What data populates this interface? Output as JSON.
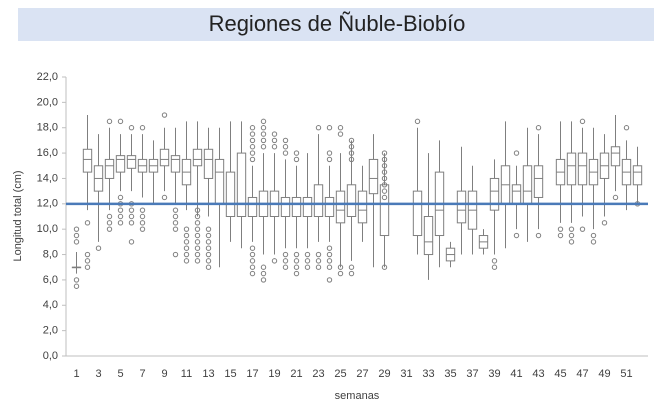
{
  "chart_data": {
    "type": "boxplot",
    "title": "Regiones de Ñuble-Biobío",
    "xlabel": "semanas",
    "ylabel": "Longitud total (cm)",
    "categories": [
      "1",
      null,
      "3",
      null,
      "5",
      null,
      "7",
      null,
      "9",
      null,
      "11",
      null,
      "13",
      null,
      "15",
      null,
      "17",
      null,
      "19",
      null,
      "21",
      null,
      "23",
      null,
      "25",
      null,
      "27",
      null,
      "29",
      null,
      "31",
      null,
      "33",
      null,
      "35",
      null,
      "37",
      null,
      "39",
      null,
      "41",
      null,
      "43",
      null,
      "45",
      null,
      "47",
      null,
      "49",
      null,
      "51",
      null
    ],
    "min": [
      6.5,
      11.5,
      9,
      11.5,
      13,
      13,
      12.5,
      12,
      13,
      12,
      11.5,
      11,
      11,
      7,
      9,
      8.5,
      9,
      8,
      8,
      8.5,
      8.5,
      8.5,
      9,
      9,
      7,
      7.5,
      9,
      7,
      7,
      null,
      null,
      8,
      6,
      7,
      7,
      8,
      8,
      8,
      8,
      8.5,
      10,
      9,
      10,
      null,
      10.5,
      10.5,
      11,
      10,
      11,
      13,
      11.5,
      12
    ],
    "q1": [
      7,
      14.5,
      13,
      14,
      14.5,
      14.8,
      14.5,
      14.5,
      15,
      14.5,
      13.5,
      15,
      14,
      12,
      11,
      11,
      11,
      11,
      11,
      11,
      11,
      11,
      11,
      11,
      10.5,
      11,
      10.5,
      12.8,
      9.5,
      null,
      null,
      9.5,
      8,
      9.5,
      7.5,
      10.5,
      10,
      8.5,
      11.5,
      12,
      12,
      12,
      12.5,
      null,
      13.5,
      13.5,
      13.5,
      13.5,
      14,
      15,
      13.5,
      13.5
    ],
    "median": [
      7,
      15.5,
      14,
      15,
      15.5,
      15.5,
      15,
      15,
      15.5,
      15.5,
      14.5,
      15.5,
      15.5,
      14.5,
      12,
      12,
      12,
      12,
      12,
      12,
      12,
      12,
      12,
      12,
      11.5,
      12,
      11.5,
      14,
      12,
      null,
      null,
      12,
      9,
      11.5,
      8,
      11.5,
      11.5,
      9,
      13,
      13.5,
      13,
      13,
      14,
      null,
      14.5,
      15,
      15,
      14.5,
      15,
      16,
      14.5,
      14.5
    ],
    "q3": [
      7,
      16.3,
      15,
      15.5,
      15.8,
      15.8,
      15.5,
      15.5,
      16.3,
      15.8,
      15.5,
      16.3,
      16.3,
      15.5,
      14.5,
      16,
      12.5,
      13,
      13,
      12.5,
      12.5,
      12.5,
      13.5,
      12.5,
      13,
      13.5,
      13,
      15.5,
      13.5,
      null,
      null,
      13,
      11,
      14.5,
      8.5,
      13,
      13,
      9.5,
      14,
      15,
      13.5,
      15,
      15,
      null,
      15.5,
      16,
      16,
      15.5,
      16,
      16.5,
      15.5,
      15
    ],
    "max": [
      8.2,
      19,
      17.5,
      18,
      17.5,
      17.5,
      17.5,
      17,
      18,
      18,
      18.5,
      18.5,
      18,
      18,
      18.5,
      18.5,
      15,
      16,
      16,
      15.5,
      15,
      16,
      17.5,
      15,
      16,
      17,
      15,
      17.5,
      16,
      null,
      null,
      18,
      16,
      17,
      9,
      16.5,
      15,
      10,
      15.5,
      18.5,
      15,
      18,
      17.5,
      null,
      18.5,
      18.5,
      18,
      18,
      17.5,
      19,
      17,
      16.5
    ],
    "outliers": [
      [
        5.5,
        6,
        9,
        9.5,
        10
      ],
      [
        7,
        7.5,
        8,
        10.5
      ],
      [
        8.5
      ],
      [
        10,
        10.5,
        11,
        18.5
      ],
      [
        10.5,
        11,
        11.5,
        12,
        12.5,
        18.5
      ],
      [
        9,
        10.5,
        11,
        11.5,
        12,
        18
      ],
      [
        10,
        10.5,
        11,
        11.5,
        18
      ],
      [],
      [
        12.5,
        19
      ],
      [
        8,
        10,
        10.5,
        11,
        11.5
      ],
      [
        7.5,
        8,
        8.5,
        9,
        9.5,
        10
      ],
      [
        7.5,
        8,
        8.5,
        9,
        9.5,
        10,
        10.5,
        11,
        11.5
      ],
      [
        7,
        7.5,
        8,
        8.5,
        9,
        9.5,
        10
      ],
      [],
      [],
      [],
      [
        6.5,
        7,
        7.5,
        8,
        8.5,
        15.5,
        16,
        16.5,
        17,
        17.5,
        18
      ],
      [
        6,
        6.5,
        7,
        16.5,
        17,
        17.5,
        18,
        18.5
      ],
      [
        7.5,
        16.5,
        17,
        17.5
      ],
      [
        7,
        7.5,
        8,
        16,
        16.5,
        17
      ],
      [
        6.5,
        7,
        7.5,
        8,
        15.5,
        16
      ],
      [
        7,
        7.5,
        8
      ],
      [
        7,
        7.5,
        8,
        18
      ],
      [
        6,
        7,
        7.5,
        8,
        8.5,
        15.5,
        16,
        18
      ],
      [
        6.5,
        7,
        17.5,
        18
      ],
      [
        6.5,
        7,
        15.5,
        16,
        16.5,
        17
      ],
      [],
      [],
      [
        7,
        12.5,
        13,
        13.5,
        14,
        14.5,
        15,
        15.5,
        16
      ],
      [],
      [],
      [
        18.5
      ],
      [],
      [],
      [],
      [],
      [],
      [],
      [
        7,
        7.5
      ],
      [],
      [
        9.5,
        16
      ],
      [],
      [
        9.5,
        18
      ],
      [],
      [
        9.5,
        10
      ],
      [
        9,
        9.5,
        10
      ],
      [
        10,
        18.5
      ],
      [
        9,
        9.5
      ],
      [
        10.5
      ],
      [
        12.5
      ],
      [
        18
      ],
      [
        12
      ]
    ],
    "color": "#7f7f7f",
    "reference_line": 12,
    "reference_color": "#4a7ab8",
    "ylim": [
      0,
      22
    ],
    "yticks": [
      {
        "value": 0,
        "label": "0,0"
      },
      {
        "value": 2,
        "label": "2,0"
      },
      {
        "value": 4,
        "label": "4,0"
      },
      {
        "value": 6,
        "label": "6,0"
      },
      {
        "value": 8,
        "label": "8,0"
      },
      {
        "value": 10,
        "label": "10,0"
      },
      {
        "value": 12,
        "label": "12,0"
      },
      {
        "value": 14,
        "label": "14,0"
      },
      {
        "value": 16,
        "label": "16,0"
      },
      {
        "value": 18,
        "label": "18,0"
      },
      {
        "value": 20,
        "label": "20,0"
      },
      {
        "value": 22,
        "label": "22,0"
      }
    ],
    "grid": false
  }
}
